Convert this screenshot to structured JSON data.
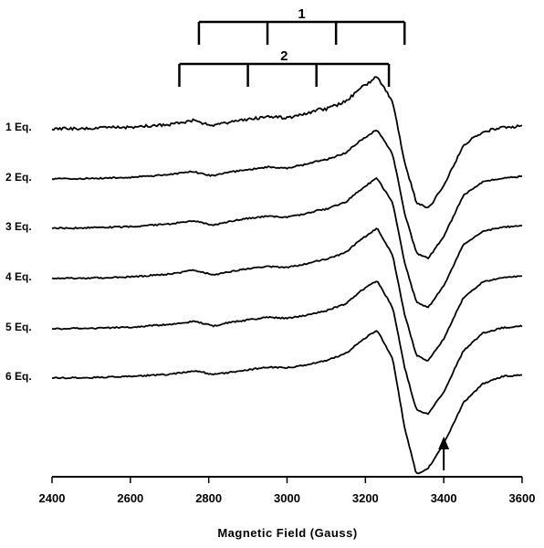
{
  "chart_data": {
    "type": "line",
    "title": "",
    "xlabel": "Magnetic Field (Gauss)",
    "ylabel": "",
    "xlim": [
      2400,
      3600
    ],
    "grid": false,
    "xticks": [
      2400,
      2600,
      2800,
      3000,
      3200,
      3400,
      3600
    ],
    "hyperfine_markers": [
      {
        "label": "1",
        "positions": [
          2775,
          2950,
          3125,
          3300
        ]
      },
      {
        "label": "2",
        "positions": [
          2725,
          2900,
          3075,
          3260
        ]
      }
    ],
    "arrow_annotation": {
      "x": 3400
    },
    "series": [
      {
        "name": "1 Eq.",
        "x": [
          2400,
          2500,
          2600,
          2700,
          2760,
          2780,
          2810,
          2850,
          2900,
          2950,
          3000,
          3050,
          3080,
          3100,
          3150,
          3190,
          3230,
          3270,
          3300,
          3330,
          3360,
          3400,
          3450,
          3500,
          3550,
          3600
        ],
        "y": [
          0,
          0.01,
          0.03,
          0.08,
          0.15,
          0.1,
          0.06,
          0.12,
          0.17,
          0.22,
          0.2,
          0.28,
          0.35,
          0.36,
          0.5,
          0.75,
          0.95,
          0.5,
          -0.6,
          -1.35,
          -1.45,
          -1.05,
          -0.3,
          -0.05,
          0.02,
          0.05
        ]
      },
      {
        "name": "2 Eq.",
        "x": [
          2400,
          2500,
          2600,
          2700,
          2760,
          2780,
          2810,
          2850,
          2900,
          2950,
          3000,
          3050,
          3080,
          3100,
          3150,
          3190,
          3230,
          3270,
          3300,
          3330,
          3360,
          3400,
          3450,
          3500,
          3550,
          3600
        ],
        "y": [
          0,
          0.01,
          0.03,
          0.08,
          0.14,
          0.1,
          0.06,
          0.12,
          0.17,
          0.22,
          0.2,
          0.27,
          0.33,
          0.35,
          0.48,
          0.72,
          0.9,
          0.45,
          -0.62,
          -1.35,
          -1.45,
          -1.05,
          -0.3,
          -0.05,
          0.02,
          0.05
        ]
      },
      {
        "name": "3 Eq.",
        "x": [
          2400,
          2500,
          2600,
          2700,
          2760,
          2780,
          2810,
          2850,
          2900,
          2950,
          3000,
          3050,
          3080,
          3100,
          3150,
          3190,
          3230,
          3270,
          3300,
          3330,
          3360,
          3400,
          3450,
          3500,
          3550,
          3600
        ],
        "y": [
          0,
          0.01,
          0.03,
          0.08,
          0.14,
          0.11,
          0.06,
          0.12,
          0.18,
          0.22,
          0.2,
          0.27,
          0.33,
          0.35,
          0.48,
          0.72,
          0.92,
          0.45,
          -0.62,
          -1.35,
          -1.45,
          -1.05,
          -0.3,
          -0.05,
          0.02,
          0.05
        ]
      },
      {
        "name": "4 Eq.",
        "x": [
          2400,
          2500,
          2600,
          2700,
          2760,
          2780,
          2810,
          2850,
          2900,
          2950,
          3000,
          3050,
          3080,
          3100,
          3150,
          3190,
          3230,
          3270,
          3300,
          3330,
          3360,
          3400,
          3450,
          3500,
          3550,
          3600
        ],
        "y": [
          0,
          0.01,
          0.03,
          0.08,
          0.15,
          0.13,
          0.06,
          0.12,
          0.18,
          0.22,
          0.2,
          0.27,
          0.33,
          0.35,
          0.48,
          0.72,
          0.92,
          0.42,
          -0.65,
          -1.4,
          -1.5,
          -1.1,
          -0.35,
          -0.06,
          0.02,
          0.05
        ]
      },
      {
        "name": "5 Eq.",
        "x": [
          2400,
          2500,
          2600,
          2700,
          2760,
          2780,
          2810,
          2850,
          2900,
          2950,
          3000,
          3050,
          3080,
          3100,
          3150,
          3190,
          3230,
          3270,
          3300,
          3330,
          3360,
          3400,
          3450,
          3500,
          3550,
          3600
        ],
        "y": [
          0,
          0.01,
          0.03,
          0.08,
          0.13,
          0.11,
          0.05,
          0.11,
          0.16,
          0.21,
          0.19,
          0.25,
          0.3,
          0.33,
          0.46,
          0.7,
          0.88,
          0.38,
          -0.7,
          -1.48,
          -1.55,
          -1.15,
          -0.4,
          -0.08,
          0.02,
          0.05
        ]
      },
      {
        "name": "6 Eq.",
        "x": [
          2400,
          2500,
          2600,
          2700,
          2760,
          2780,
          2810,
          2850,
          2900,
          2950,
          3000,
          3050,
          3080,
          3100,
          3150,
          3190,
          3230,
          3270,
          3300,
          3330,
          3360,
          3400,
          3450,
          3500,
          3550,
          3600
        ],
        "y": [
          0,
          0.01,
          0.03,
          0.07,
          0.13,
          0.12,
          0.06,
          0.1,
          0.15,
          0.2,
          0.19,
          0.24,
          0.29,
          0.32,
          0.45,
          0.68,
          0.88,
          0.35,
          -0.9,
          -1.75,
          -1.65,
          -1.2,
          -0.45,
          -0.1,
          0.03,
          0.06
        ]
      }
    ]
  }
}
